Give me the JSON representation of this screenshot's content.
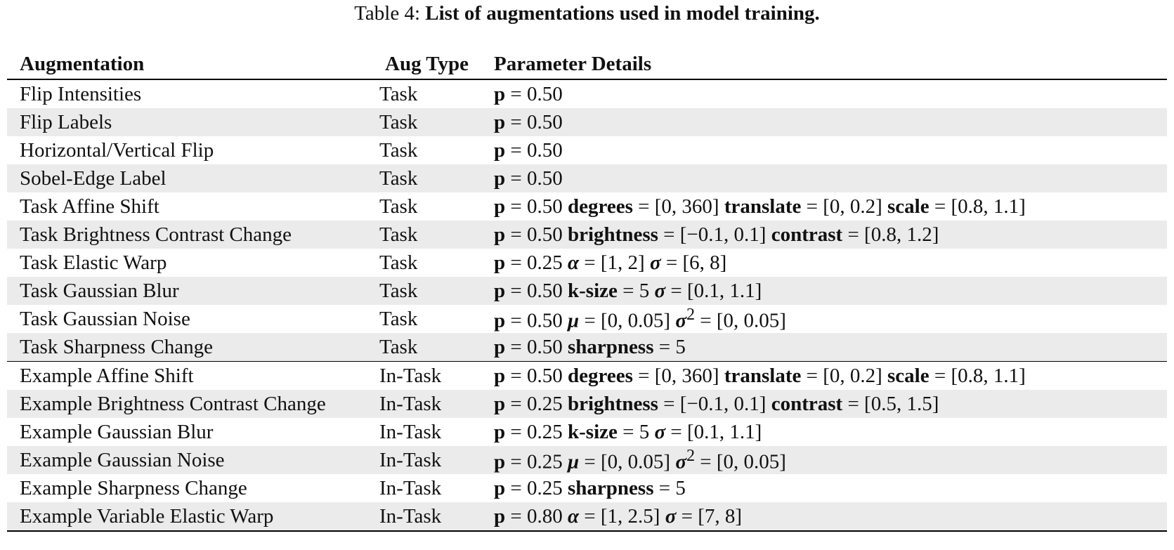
{
  "caption": {
    "prefix": "Table 4: ",
    "title": "List of augmentations used in model training."
  },
  "headers": {
    "augmentation": "Augmentation",
    "aug_type": "Aug Type",
    "params": "Parameter Details"
  },
  "rows": [
    {
      "name": "Flip Intensities",
      "type": "Task",
      "params": [
        [
          "b",
          "p"
        ],
        [
          "n",
          " = 0.50"
        ]
      ]
    },
    {
      "name": "Flip Labels",
      "type": "Task",
      "params": [
        [
          "b",
          "p"
        ],
        [
          "n",
          " = 0.50"
        ]
      ]
    },
    {
      "name": "Horizontal/Vertical Flip",
      "type": "Task",
      "params": [
        [
          "b",
          "p"
        ],
        [
          "n",
          " = 0.50"
        ]
      ]
    },
    {
      "name": "Sobel-Edge Label",
      "type": "Task",
      "params": [
        [
          "b",
          "p"
        ],
        [
          "n",
          " = 0.50"
        ]
      ]
    },
    {
      "name": "Task Affine Shift",
      "type": "Task",
      "params": [
        [
          "b",
          "p"
        ],
        [
          "n",
          " = 0.50 "
        ],
        [
          "b",
          "degrees"
        ],
        [
          "n",
          " = [0, 360] "
        ],
        [
          "b",
          "translate"
        ],
        [
          "n",
          " = [0, 0.2] "
        ],
        [
          "b",
          "scale"
        ],
        [
          "n",
          " = [0.8, 1.1]"
        ]
      ]
    },
    {
      "name": "Task Brightness Contrast Change",
      "type": "Task",
      "params": [
        [
          "b",
          "p"
        ],
        [
          "n",
          " = 0.50 "
        ],
        [
          "b",
          "brightness"
        ],
        [
          "n",
          " = [−0.1, 0.1] "
        ],
        [
          "b",
          "contrast"
        ],
        [
          "n",
          " = [0.8, 1.2]"
        ]
      ]
    },
    {
      "name": "Task Elastic Warp",
      "type": "Task",
      "params": [
        [
          "b",
          "p"
        ],
        [
          "n",
          " = 0.25 "
        ],
        [
          "m",
          "α"
        ],
        [
          "n",
          " = [1, 2] "
        ],
        [
          "m",
          "σ"
        ],
        [
          "n",
          " = [6, 8]"
        ]
      ]
    },
    {
      "name": "Task Gaussian Blur",
      "type": "Task",
      "params": [
        [
          "b",
          "p"
        ],
        [
          "n",
          " = 0.50 "
        ],
        [
          "b",
          "k-size"
        ],
        [
          "n",
          " = 5 "
        ],
        [
          "m",
          "σ"
        ],
        [
          "n",
          " = [0.1, 1.1]"
        ]
      ]
    },
    {
      "name": "Task Gaussian Noise",
      "type": "Task",
      "params": [
        [
          "b",
          "p"
        ],
        [
          "n",
          " = 0.50 "
        ],
        [
          "m",
          "μ"
        ],
        [
          "n",
          " = [0, 0.05] "
        ],
        [
          "m",
          "σ"
        ],
        [
          "e",
          "2"
        ],
        [
          "n",
          " = [0, 0.05]"
        ]
      ]
    },
    {
      "name": "Task Sharpness Change",
      "type": "Task",
      "params": [
        [
          "b",
          "p"
        ],
        [
          "n",
          " = 0.50 "
        ],
        [
          "b",
          "sharpness"
        ],
        [
          "n",
          " = 5"
        ]
      ]
    },
    {
      "name": "Example Affine Shift",
      "type": "In-Task",
      "params": [
        [
          "b",
          "p"
        ],
        [
          "n",
          " = 0.50 "
        ],
        [
          "b",
          "degrees"
        ],
        [
          "n",
          " = [0, 360] "
        ],
        [
          "b",
          "translate"
        ],
        [
          "n",
          " = [0, 0.2] "
        ],
        [
          "b",
          "scale"
        ],
        [
          "n",
          " = [0.8, 1.1]"
        ]
      ]
    },
    {
      "name": "Example Brightness Contrast Change",
      "type": "In-Task",
      "params": [
        [
          "b",
          "p"
        ],
        [
          "n",
          " = 0.25 "
        ],
        [
          "b",
          "brightness"
        ],
        [
          "n",
          " = [−0.1, 0.1] "
        ],
        [
          "b",
          "contrast"
        ],
        [
          "n",
          " = [0.5, 1.5]"
        ]
      ]
    },
    {
      "name": "Example Gaussian Blur",
      "type": "In-Task",
      "params": [
        [
          "b",
          "p"
        ],
        [
          "n",
          " = 0.25 "
        ],
        [
          "b",
          "k-size"
        ],
        [
          "n",
          " = 5 "
        ],
        [
          "m",
          "σ"
        ],
        [
          "n",
          " = [0.1, 1.1]"
        ]
      ]
    },
    {
      "name": "Example Gaussian Noise",
      "type": "In-Task",
      "params": [
        [
          "b",
          "p"
        ],
        [
          "n",
          " = 0.25 "
        ],
        [
          "m",
          "μ"
        ],
        [
          "n",
          " = [0, 0.05] "
        ],
        [
          "m",
          "σ"
        ],
        [
          "e",
          "2"
        ],
        [
          "n",
          " = [0, 0.05]"
        ]
      ]
    },
    {
      "name": "Example Sharpness Change",
      "type": "In-Task",
      "params": [
        [
          "b",
          "p"
        ],
        [
          "n",
          " = 0.25 "
        ],
        [
          "b",
          "sharpness"
        ],
        [
          "n",
          " = 5"
        ]
      ]
    },
    {
      "name": "Example Variable Elastic Warp",
      "type": "In-Task",
      "params": [
        [
          "b",
          "p"
        ],
        [
          "n",
          " = 0.80 "
        ],
        [
          "m",
          "α"
        ],
        [
          "n",
          " = [1, 2.5] "
        ],
        [
          "m",
          "σ"
        ],
        [
          "n",
          " = [7, 8]"
        ]
      ]
    }
  ]
}
